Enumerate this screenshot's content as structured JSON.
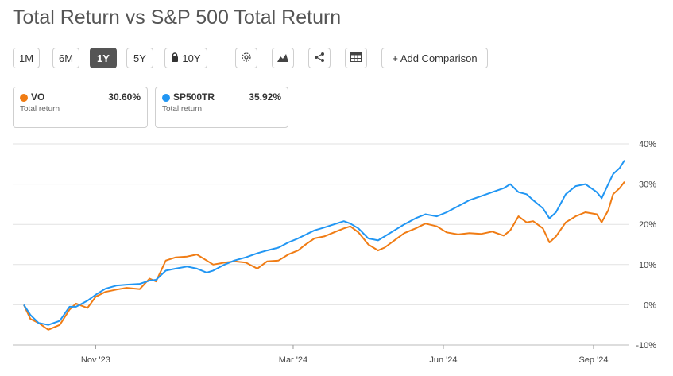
{
  "header": {
    "title": "Total Return vs S&P 500 Total Return"
  },
  "toolbar": {
    "ranges": [
      "1M",
      "6M",
      "1Y",
      "5Y",
      "10Y"
    ],
    "active_range": "1Y",
    "locked_range": "10Y",
    "icons": [
      "gear-icon",
      "mountain-chart-icon",
      "share-icon",
      "table-icon"
    ],
    "add_comparison_label": "+ Add Comparison"
  },
  "legend_cards": [
    {
      "ticker": "VO",
      "value": "30.60%",
      "sub": "Total return",
      "color": "#f07c14"
    },
    {
      "ticker": "SP500TR",
      "value": "35.92%",
      "sub": "Total return",
      "color": "#2196f3"
    }
  ],
  "chart_data": {
    "type": "line",
    "title": "Total Return vs S&P 500 Total Return",
    "x_tick_labels": [
      "Nov '23",
      "Mar '24",
      "Jun '24",
      "Sep '24"
    ],
    "y_tick_labels": [
      "40%",
      "30%",
      "20%",
      "10%",
      "0%",
      "-10%"
    ],
    "ylim": [
      -10,
      40
    ],
    "y_ticks": [
      40,
      30,
      20,
      10,
      0,
      -10
    ],
    "grid": true,
    "x_start": "2023-09-18",
    "x_end": "2024-09-20",
    "x_ticks": [
      "2023-11-01",
      "2024-03-01",
      "2024-06-01",
      "2024-09-01"
    ],
    "series": [
      {
        "name": "VO",
        "color": "#f07c14",
        "points": [
          [
            "2023-09-18",
            0.0
          ],
          [
            "2023-09-22",
            -3.5
          ],
          [
            "2023-09-27",
            -4.5
          ],
          [
            "2023-10-03",
            -6.2
          ],
          [
            "2023-10-10",
            -5.0
          ],
          [
            "2023-10-16",
            -1.2
          ],
          [
            "2023-10-20",
            0.3
          ],
          [
            "2023-10-27",
            -0.8
          ],
          [
            "2023-11-01",
            2.0
          ],
          [
            "2023-11-07",
            3.2
          ],
          [
            "2023-11-14",
            3.8
          ],
          [
            "2023-11-20",
            4.2
          ],
          [
            "2023-11-28",
            3.9
          ],
          [
            "2023-12-04",
            6.5
          ],
          [
            "2023-12-08",
            5.8
          ],
          [
            "2023-12-14",
            11.0
          ],
          [
            "2023-12-20",
            11.8
          ],
          [
            "2023-12-27",
            12.0
          ],
          [
            "2024-01-02",
            12.5
          ],
          [
            "2024-01-08",
            11.0
          ],
          [
            "2024-01-12",
            10.0
          ],
          [
            "2024-01-19",
            10.5
          ],
          [
            "2024-01-25",
            10.8
          ],
          [
            "2024-02-01",
            10.5
          ],
          [
            "2024-02-08",
            9.0
          ],
          [
            "2024-02-14",
            10.8
          ],
          [
            "2024-02-21",
            11.0
          ],
          [
            "2024-02-27",
            12.5
          ],
          [
            "2024-03-04",
            13.5
          ],
          [
            "2024-03-08",
            14.8
          ],
          [
            "2024-03-14",
            16.5
          ],
          [
            "2024-03-20",
            17.0
          ],
          [
            "2024-03-26",
            18.0
          ],
          [
            "2024-04-01",
            19.0
          ],
          [
            "2024-04-05",
            19.5
          ],
          [
            "2024-04-10",
            18.0
          ],
          [
            "2024-04-16",
            15.0
          ],
          [
            "2024-04-22",
            13.5
          ],
          [
            "2024-04-26",
            14.2
          ],
          [
            "2024-05-02",
            16.0
          ],
          [
            "2024-05-08",
            17.8
          ],
          [
            "2024-05-15",
            19.0
          ],
          [
            "2024-05-21",
            20.2
          ],
          [
            "2024-05-28",
            19.5
          ],
          [
            "2024-06-03",
            18.0
          ],
          [
            "2024-06-10",
            17.5
          ],
          [
            "2024-06-17",
            17.8
          ],
          [
            "2024-06-24",
            17.6
          ],
          [
            "2024-07-01",
            18.2
          ],
          [
            "2024-07-08",
            17.2
          ],
          [
            "2024-07-12",
            18.5
          ],
          [
            "2024-07-17",
            22.0
          ],
          [
            "2024-07-22",
            20.5
          ],
          [
            "2024-07-26",
            20.8
          ],
          [
            "2024-08-01",
            19.0
          ],
          [
            "2024-08-05",
            15.5
          ],
          [
            "2024-08-09",
            17.0
          ],
          [
            "2024-08-15",
            20.5
          ],
          [
            "2024-08-21",
            22.0
          ],
          [
            "2024-08-27",
            23.0
          ],
          [
            "2024-09-03",
            22.5
          ],
          [
            "2024-09-06",
            20.5
          ],
          [
            "2024-09-10",
            23.5
          ],
          [
            "2024-09-13",
            27.5
          ],
          [
            "2024-09-17",
            29.0
          ],
          [
            "2024-09-20",
            30.6
          ]
        ]
      },
      {
        "name": "SP500TR",
        "color": "#2196f3",
        "points": [
          [
            "2023-09-18",
            0.0
          ],
          [
            "2023-09-22",
            -2.5
          ],
          [
            "2023-09-27",
            -4.5
          ],
          [
            "2023-10-03",
            -5.0
          ],
          [
            "2023-10-10",
            -4.0
          ],
          [
            "2023-10-16",
            -0.5
          ],
          [
            "2023-10-20",
            -0.5
          ],
          [
            "2023-10-27",
            1.0
          ],
          [
            "2023-11-01",
            2.5
          ],
          [
            "2023-11-07",
            4.0
          ],
          [
            "2023-11-14",
            4.8
          ],
          [
            "2023-11-20",
            5.0
          ],
          [
            "2023-11-28",
            5.2
          ],
          [
            "2023-12-04",
            6.0
          ],
          [
            "2023-12-08",
            6.2
          ],
          [
            "2023-12-14",
            8.5
          ],
          [
            "2023-12-20",
            9.0
          ],
          [
            "2023-12-27",
            9.5
          ],
          [
            "2024-01-02",
            9.0
          ],
          [
            "2024-01-08",
            8.0
          ],
          [
            "2024-01-12",
            8.5
          ],
          [
            "2024-01-19",
            10.0
          ],
          [
            "2024-01-25",
            11.0
          ],
          [
            "2024-02-01",
            11.8
          ],
          [
            "2024-02-08",
            12.8
          ],
          [
            "2024-02-14",
            13.5
          ],
          [
            "2024-02-21",
            14.2
          ],
          [
            "2024-02-27",
            15.5
          ],
          [
            "2024-03-04",
            16.5
          ],
          [
            "2024-03-08",
            17.3
          ],
          [
            "2024-03-14",
            18.5
          ],
          [
            "2024-03-20",
            19.2
          ],
          [
            "2024-03-26",
            20.0
          ],
          [
            "2024-04-01",
            20.8
          ],
          [
            "2024-04-05",
            20.2
          ],
          [
            "2024-04-10",
            19.0
          ],
          [
            "2024-04-16",
            16.5
          ],
          [
            "2024-04-22",
            16.0
          ],
          [
            "2024-04-26",
            17.0
          ],
          [
            "2024-05-02",
            18.5
          ],
          [
            "2024-05-08",
            20.0
          ],
          [
            "2024-05-15",
            21.5
          ],
          [
            "2024-05-21",
            22.5
          ],
          [
            "2024-05-28",
            22.0
          ],
          [
            "2024-06-03",
            23.0
          ],
          [
            "2024-06-10",
            24.5
          ],
          [
            "2024-06-17",
            26.0
          ],
          [
            "2024-06-24",
            27.0
          ],
          [
            "2024-07-01",
            28.0
          ],
          [
            "2024-07-08",
            29.0
          ],
          [
            "2024-07-12",
            30.0
          ],
          [
            "2024-07-17",
            28.0
          ],
          [
            "2024-07-22",
            27.5
          ],
          [
            "2024-07-26",
            26.0
          ],
          [
            "2024-08-01",
            24.0
          ],
          [
            "2024-08-05",
            21.5
          ],
          [
            "2024-08-09",
            23.0
          ],
          [
            "2024-08-15",
            27.5
          ],
          [
            "2024-08-21",
            29.5
          ],
          [
            "2024-08-27",
            30.0
          ],
          [
            "2024-09-03",
            28.0
          ],
          [
            "2024-09-06",
            26.5
          ],
          [
            "2024-09-10",
            30.0
          ],
          [
            "2024-09-13",
            32.5
          ],
          [
            "2024-09-17",
            34.0
          ],
          [
            "2024-09-20",
            35.92
          ]
        ]
      }
    ]
  }
}
